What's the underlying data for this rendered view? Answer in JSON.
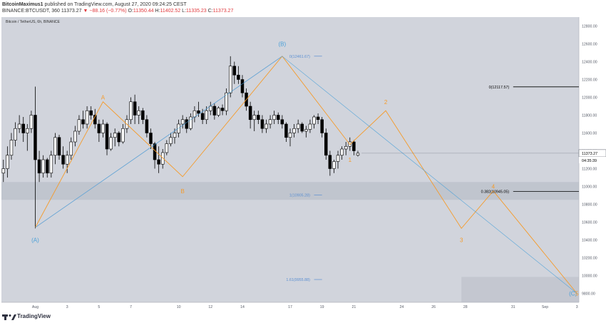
{
  "header": {
    "author": "BitcoinMaximus1",
    "published_text": "published on TradingView.com, August 27, 2020 09:24:25 CEST",
    "symbol": "BINANCE:BTCUSDT, 360",
    "last": "11373.27",
    "change": "▼ −88.16 (−0.77%)",
    "o_label": "O:",
    "o": "11350.44",
    "h_label": "H:",
    "h": "11402.52",
    "l_label": "L:",
    "l": "11335.23",
    "c_label": "C:",
    "c": "11373.27"
  },
  "colors": {
    "background": "#d1d4dc",
    "bullish": "#ffffff",
    "bearish": "#000000",
    "wave_orange": "#f59b2b",
    "wave_blue": "#4aa0d8",
    "fib_blue": "#5b8fd1",
    "channel": "#9aaed0"
  },
  "footer": {
    "brand": "TradingView"
  },
  "chart_data": {
    "type": "candlestick",
    "title": "Bitcoin / TetherUS, 6h, BINANCE",
    "xlabel": "",
    "ylabel": "",
    "ylim": [
      9700,
      12900
    ],
    "y_ticks": [
      "12800.00",
      "12600.00",
      "12400.00",
      "12200.00",
      "12000.00",
      "11800.00",
      "11600.00",
      "11400.00",
      "11200.00",
      "11000.00",
      "10800.00",
      "10600.00",
      "10400.00",
      "10200.00",
      "10000.00",
      "9800.00"
    ],
    "x_ticks": [
      {
        "label": "Aug",
        "bar": 8
      },
      {
        "label": "3",
        "bar": 16
      },
      {
        "label": "5",
        "bar": 24
      },
      {
        "label": "7",
        "bar": 32
      },
      {
        "label": "10",
        "bar": 44
      },
      {
        "label": "12",
        "bar": 52
      },
      {
        "label": "14",
        "bar": 60
      },
      {
        "label": "17",
        "bar": 72
      },
      {
        "label": "19",
        "bar": 80
      },
      {
        "label": "21",
        "bar": 88
      },
      {
        "label": "24",
        "bar": 100
      },
      {
        "label": "26",
        "bar": 108
      },
      {
        "label": "28",
        "bar": 116
      },
      {
        "label": "31",
        "bar": 128
      },
      {
        "label": "Sep",
        "bar": 136
      },
      {
        "label": "3",
        "bar": 144
      }
    ],
    "candles": [
      [
        11150,
        11300,
        11050,
        11200
      ],
      [
        11200,
        11450,
        11100,
        11350
      ],
      [
        11350,
        11600,
        11300,
        11520
      ],
      [
        11520,
        11720,
        11450,
        11650
      ],
      [
        11650,
        11800,
        11600,
        11700
      ],
      [
        11700,
        11780,
        11500,
        11600
      ],
      [
        11600,
        11700,
        11400,
        11650
      ],
      [
        11650,
        11850,
        11600,
        11800
      ],
      [
        11800,
        12120,
        10530,
        11300
      ],
      [
        11300,
        11400,
        11050,
        11150
      ],
      [
        11150,
        11350,
        11100,
        11300
      ],
      [
        11300,
        11320,
        11100,
        11150
      ],
      [
        11150,
        11400,
        11100,
        11350
      ],
      [
        11350,
        11600,
        11250,
        11550
      ],
      [
        11550,
        11580,
        11300,
        11350
      ],
      [
        11350,
        11450,
        11200,
        11250
      ],
      [
        11250,
        11400,
        11150,
        11350
      ],
      [
        11350,
        11550,
        11300,
        11500
      ],
      [
        11500,
        11680,
        11450,
        11620
      ],
      [
        11620,
        11800,
        11580,
        11750
      ],
      [
        11750,
        11850,
        11650,
        11700
      ],
      [
        11700,
        11900,
        11650,
        11850
      ],
      [
        11850,
        11900,
        11750,
        11800
      ],
      [
        11800,
        11870,
        11650,
        11700
      ],
      [
        11700,
        11750,
        11500,
        11600
      ],
      [
        11600,
        11750,
        11550,
        11700
      ],
      [
        11700,
        11720,
        11350,
        11420
      ],
      [
        11420,
        11600,
        11400,
        11550
      ],
      [
        11550,
        11650,
        11450,
        11600
      ],
      [
        11600,
        11620,
        11450,
        11500
      ],
      [
        11500,
        11700,
        11480,
        11650
      ],
      [
        11650,
        11800,
        11600,
        11750
      ],
      [
        11750,
        12000,
        11700,
        11950
      ],
      [
        11950,
        12030,
        11700,
        11800
      ],
      [
        11800,
        11900,
        11700,
        11850
      ],
      [
        11850,
        11880,
        11700,
        11750
      ],
      [
        11750,
        11800,
        11550,
        11600
      ],
      [
        11600,
        11650,
        11420,
        11480
      ],
      [
        11480,
        11500,
        11200,
        11300
      ],
      [
        11300,
        11450,
        11150,
        11250
      ],
      [
        11250,
        11420,
        11200,
        11380
      ],
      [
        11380,
        11520,
        11350,
        11480
      ],
      [
        11480,
        11600,
        11450,
        11550
      ],
      [
        11550,
        11650,
        11480,
        11600
      ],
      [
        11600,
        11750,
        11550,
        11700
      ],
      [
        11700,
        11800,
        11650,
        11750
      ],
      [
        11750,
        11780,
        11600,
        11650
      ],
      [
        11650,
        11820,
        11630,
        11780
      ],
      [
        11780,
        11900,
        11720,
        11850
      ],
      [
        11850,
        11950,
        11780,
        11820
      ],
      [
        11820,
        11870,
        11700,
        11750
      ],
      [
        11750,
        11900,
        11700,
        11850
      ],
      [
        11850,
        11950,
        11800,
        11900
      ],
      [
        11900,
        11930,
        11750,
        11800
      ],
      [
        11800,
        11900,
        11780,
        11880
      ],
      [
        11880,
        11920,
        11800,
        11850
      ],
      [
        11850,
        12100,
        11800,
        12050
      ],
      [
        12050,
        12461,
        12000,
        12350
      ],
      [
        12350,
        12400,
        12150,
        12250
      ],
      [
        12250,
        12350,
        12150,
        12200
      ],
      [
        12200,
        12250,
        12000,
        12050
      ],
      [
        12050,
        12100,
        11850,
        11900
      ],
      [
        11900,
        11950,
        11650,
        11750
      ],
      [
        11750,
        11850,
        11620,
        11800
      ],
      [
        11800,
        11850,
        11700,
        11750
      ],
      [
        11750,
        11800,
        11600,
        11650
      ],
      [
        11650,
        11750,
        11600,
        11700
      ],
      [
        11700,
        11800,
        11650,
        11750
      ],
      [
        11750,
        11850,
        11700,
        11800
      ],
      [
        11800,
        11830,
        11700,
        11750
      ],
      [
        11750,
        11800,
        11650,
        11700
      ],
      [
        11700,
        11720,
        11500,
        11550
      ],
      [
        11550,
        11650,
        11450,
        11600
      ],
      [
        11600,
        11700,
        11550,
        11650
      ],
      [
        11650,
        11750,
        11600,
        11700
      ],
      [
        11700,
        11720,
        11600,
        11620
      ],
      [
        11620,
        11680,
        11550,
        11640
      ],
      [
        11640,
        11750,
        11600,
        11700
      ],
      [
        11700,
        11800,
        11650,
        11780
      ],
      [
        11780,
        11820,
        11700,
        11750
      ],
      [
        11750,
        11780,
        11550,
        11600
      ],
      [
        11600,
        11650,
        11300,
        11350
      ],
      [
        11350,
        11400,
        11120,
        11200
      ],
      [
        11200,
        11300,
        11150,
        11280
      ],
      [
        11280,
        11400,
        11200,
        11350
      ],
      [
        11350,
        11450,
        11300,
        11420
      ],
      [
        11420,
        11500,
        11350,
        11450
      ],
      [
        11450,
        11550,
        11400,
        11500
      ],
      [
        11500,
        11520,
        11350,
        11400
      ],
      [
        11350,
        11400,
        11335,
        11373
      ]
    ],
    "wave_labels_blue": [
      {
        "text": "(A)",
        "bar": 8,
        "price": 10400
      },
      {
        "text": "(B)",
        "bar": 70,
        "price": 12600
      },
      {
        "text": "(C)",
        "bar": 143,
        "price": 9800
      }
    ],
    "wave_labels_orange": [
      {
        "text": "A",
        "bar": 25,
        "price": 12000
      },
      {
        "text": "B",
        "bar": 45,
        "price": 10950
      },
      {
        "text": "1",
        "bar": 87,
        "price": 11300
      },
      {
        "text": "2",
        "bar": 96,
        "price": 11950
      },
      {
        "text": "3",
        "bar": 115,
        "price": 10400
      },
      {
        "text": "4",
        "bar": 123,
        "price": 11000
      },
      {
        "text": "5",
        "bar": 144,
        "price": 9800
      }
    ],
    "fib_levels": [
      {
        "text": "0(12461.67)",
        "price": 12461.67
      },
      {
        "text": "1(10905.28)",
        "price": 10905.28
      },
      {
        "text": "1.61(9955.88)",
        "price": 9955.88
      }
    ],
    "right_levels": [
      {
        "text": "0(12117.57)",
        "price": 12117.57
      },
      {
        "text": "0.382(10945.05)",
        "price": 10945.05
      }
    ],
    "support_zone": [
      10850,
      11050
    ],
    "target_zone": [
      9700,
      9985
    ],
    "last_price_label": "11373.27",
    "countdown_label": "04:35:39",
    "orange_path": [
      [
        8,
        10540
      ],
      [
        25,
        11950
      ],
      [
        45,
        11110
      ],
      [
        70,
        12461
      ],
      [
        87,
        11470
      ],
      [
        96,
        11850
      ],
      [
        115,
        10530
      ],
      [
        123,
        10950
      ],
      [
        144,
        9800
      ]
    ],
    "blue_path": [
      [
        8,
        10540
      ],
      [
        70,
        12461
      ],
      [
        144,
        9800
      ]
    ]
  }
}
